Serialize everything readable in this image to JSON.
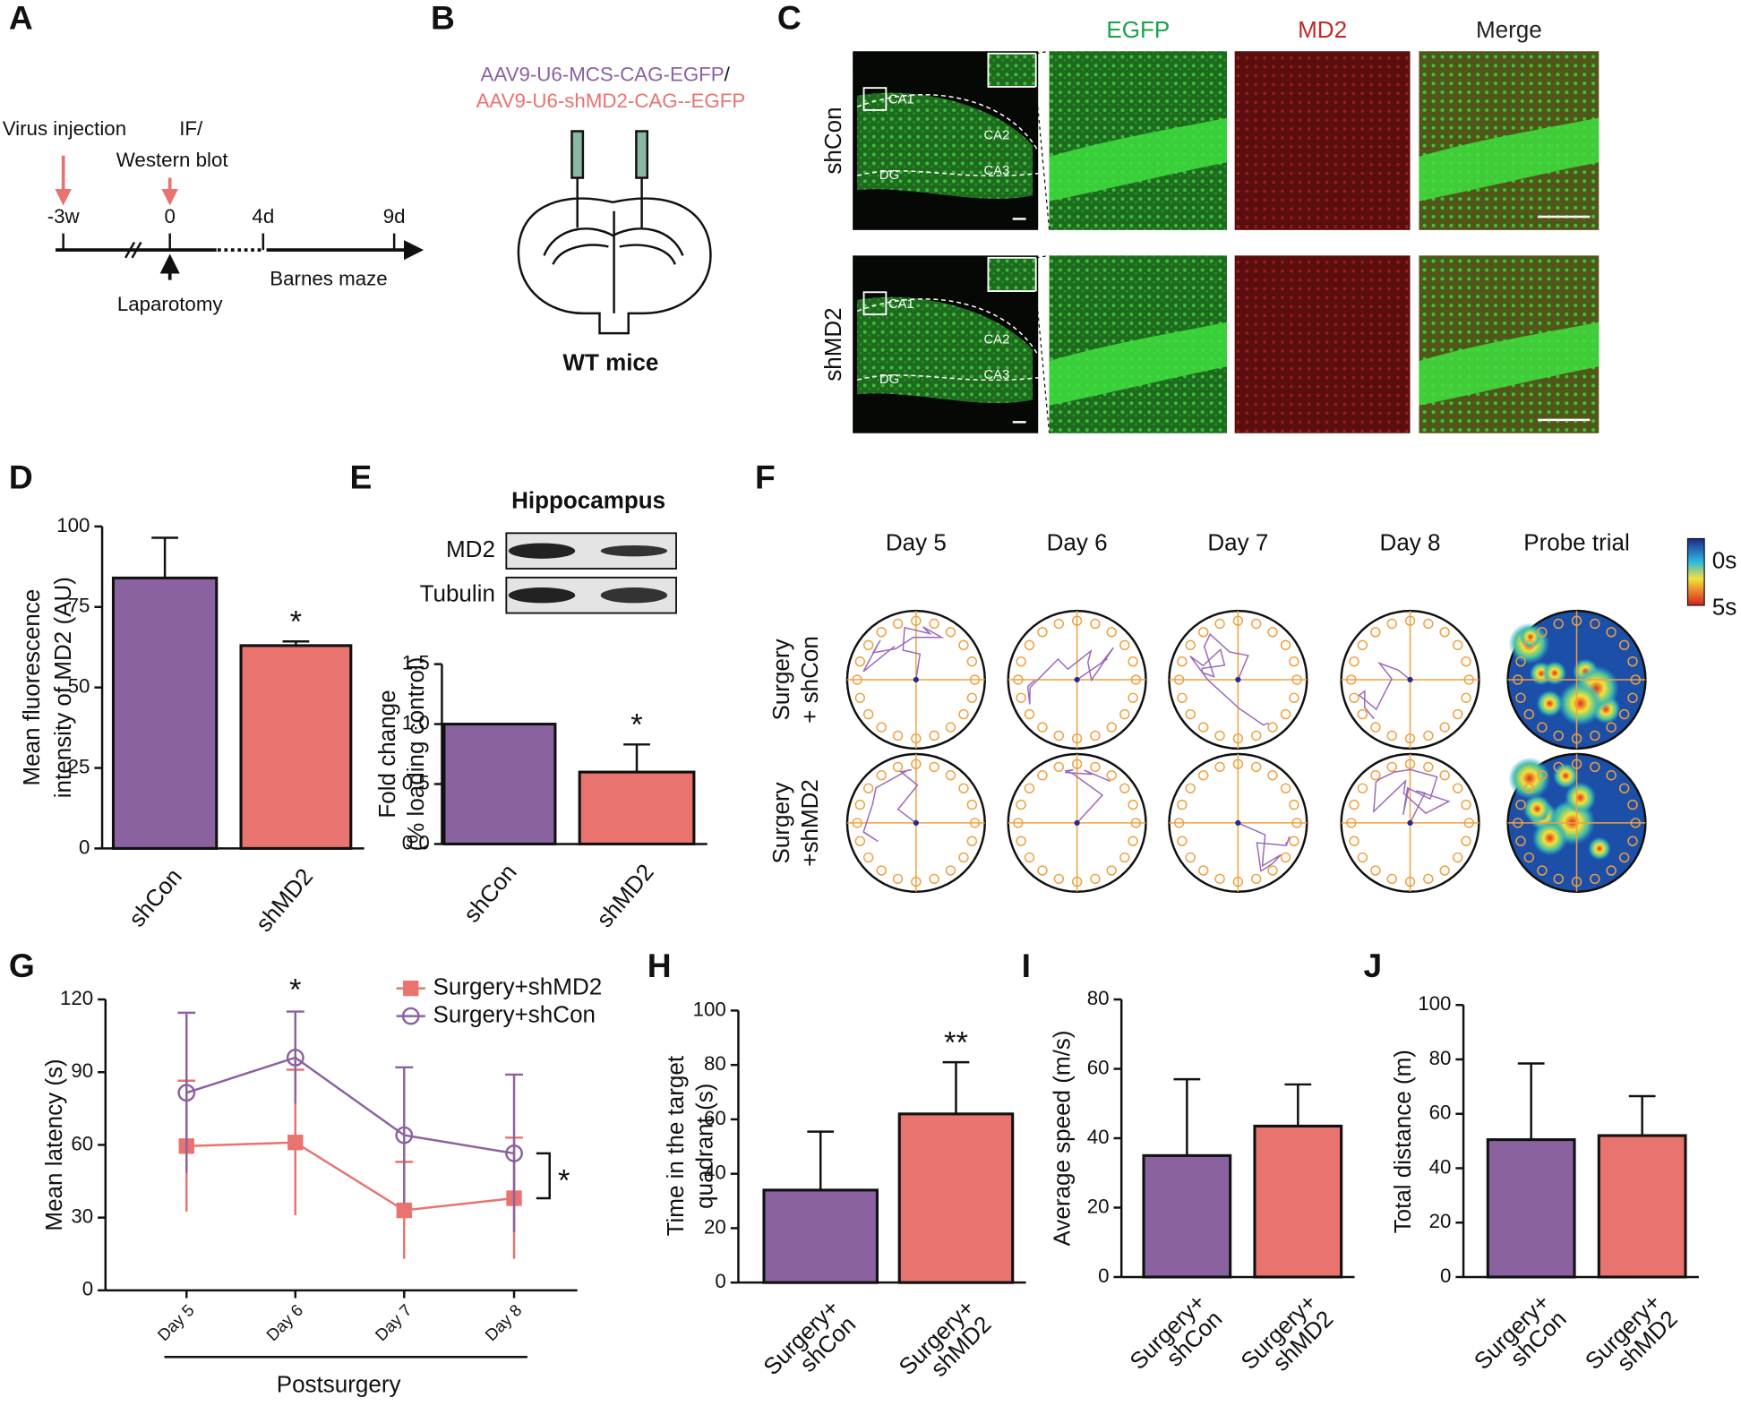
{
  "figure": {
    "A": {
      "label": "A",
      "events": [
        "Virus injection",
        "IF/",
        "Western blot",
        "Laparotomy",
        "Barnes maze"
      ],
      "timepoints": [
        "-3w",
        "0",
        "4d",
        "9d"
      ]
    },
    "B": {
      "label": "B",
      "vector_control": "AAV9-U6-MCS-CAG-EGFP",
      "separator": "/",
      "vector_knockdown": "AAV9-U6-shMD2-CAG--EGFP",
      "caption": "WT mice"
    },
    "C": {
      "label": "C",
      "channels": [
        "EGFP",
        "MD2",
        "Merge"
      ],
      "groups": [
        "shCon",
        "shMD2"
      ],
      "regions": [
        "CA1",
        "CA2",
        "CA3",
        "DG"
      ]
    },
    "F": {
      "label": "F",
      "sessions": [
        "Day 5",
        "Day 6",
        "Day 7",
        "Day 8",
        "Probe trial"
      ],
      "groups": [
        [
          "Surgery",
          "+ shCon"
        ],
        [
          "Surgery",
          "+shMD2"
        ]
      ],
      "colorbar": [
        "0s",
        "5s"
      ]
    }
  },
  "chart_data": [
    {
      "label": "D",
      "type": "bar",
      "ylabel": [
        "Mean fluorescence",
        "intensity of MD2 (AU)"
      ],
      "categories": [
        "shCon",
        "shMD2"
      ],
      "values": [
        84,
        63
      ],
      "errors": [
        12.5,
        1.3
      ],
      "colors": [
        "#8b62a0",
        "#e8736f"
      ],
      "ylim": [
        0,
        100
      ],
      "yticks": [
        0,
        25,
        50,
        75,
        100
      ],
      "significance": [
        null,
        "*"
      ]
    },
    {
      "label": "E",
      "type": "bar",
      "title": "Hippocampus",
      "blot_rows": [
        "MD2",
        "Tubulin"
      ],
      "ylabel": [
        "Fold change",
        "(% loading control)"
      ],
      "categories": [
        "shCon",
        "shMD2"
      ],
      "values": [
        1.0,
        0.6
      ],
      "errors": [
        0,
        0.23
      ],
      "colors": [
        "#8b62a0",
        "#e8736f"
      ],
      "ylim": [
        0,
        1.5
      ],
      "yticks": [
        {
          "value": 0,
          "label": "0.0"
        },
        {
          "value": 0.5,
          "label": "0.5"
        },
        {
          "value": 1,
          "label": "1.0"
        },
        {
          "value": 1.5,
          "label": "1.5"
        }
      ],
      "significance": [
        null,
        "*"
      ]
    },
    {
      "label": "G",
      "type": "line",
      "ylabel": [
        "Mean  latency (s)"
      ],
      "xlabel": "Postsurgery",
      "categories": [
        "Day 5",
        "Day 6",
        "Day 7",
        "Day 8"
      ],
      "series": [
        {
          "name": "Surgery+shMD2",
          "color": "#e8736f",
          "marker": "square",
          "values": [
            59.5,
            61,
            33,
            38
          ],
          "errors": [
            27,
            30,
            20,
            25
          ]
        },
        {
          "name": "Surgery+shCon",
          "color": "#8b62a0",
          "marker": "open-circle",
          "values": [
            81.5,
            96,
            64,
            56.5
          ],
          "errors": [
            33,
            19,
            28,
            32.5
          ]
        }
      ],
      "ylim": [
        0,
        120
      ],
      "yticks": [
        0,
        30,
        60,
        90,
        120
      ],
      "significance": [
        null,
        "*",
        null,
        null
      ],
      "group_significance": "*"
    },
    {
      "label": "H",
      "type": "bar",
      "ylabel": [
        "Time in the target",
        "quadrant (s)"
      ],
      "categories": [
        [
          "Surgery+",
          "shCon"
        ],
        [
          "Surgery+",
          "shMD2"
        ]
      ],
      "values": [
        34,
        62
      ],
      "errors": [
        21.5,
        19
      ],
      "colors": [
        "#8b62a0",
        "#e8736f"
      ],
      "ylim": [
        0,
        100
      ],
      "yticks": [
        0,
        20,
        40,
        60,
        80,
        100
      ],
      "significance": [
        null,
        "**"
      ]
    },
    {
      "label": "I",
      "type": "bar",
      "ylabel": [
        "Average speed (m/s)"
      ],
      "categories": [
        [
          "Surgery+",
          "shCon"
        ],
        [
          "Surgery+",
          "shMD2"
        ]
      ],
      "values": [
        35,
        43.5
      ],
      "errors": [
        22,
        12
      ],
      "colors": [
        "#8b62a0",
        "#e8736f"
      ],
      "ylim": [
        0,
        80
      ],
      "yticks": [
        0,
        20,
        40,
        60,
        80
      ],
      "significance": [
        null,
        null
      ]
    },
    {
      "label": "J",
      "type": "bar",
      "ylabel": [
        "Total distance (m)"
      ],
      "categories": [
        [
          "Surgery+",
          "shCon"
        ],
        [
          "Surgery+",
          "shMD2"
        ]
      ],
      "values": [
        50.5,
        52
      ],
      "errors": [
        28,
        14.5
      ],
      "colors": [
        "#8b62a0",
        "#e8736f"
      ],
      "ylim": [
        0,
        100
      ],
      "yticks": [
        0,
        20,
        40,
        60,
        80,
        100
      ],
      "significance": [
        null,
        null
      ]
    }
  ]
}
